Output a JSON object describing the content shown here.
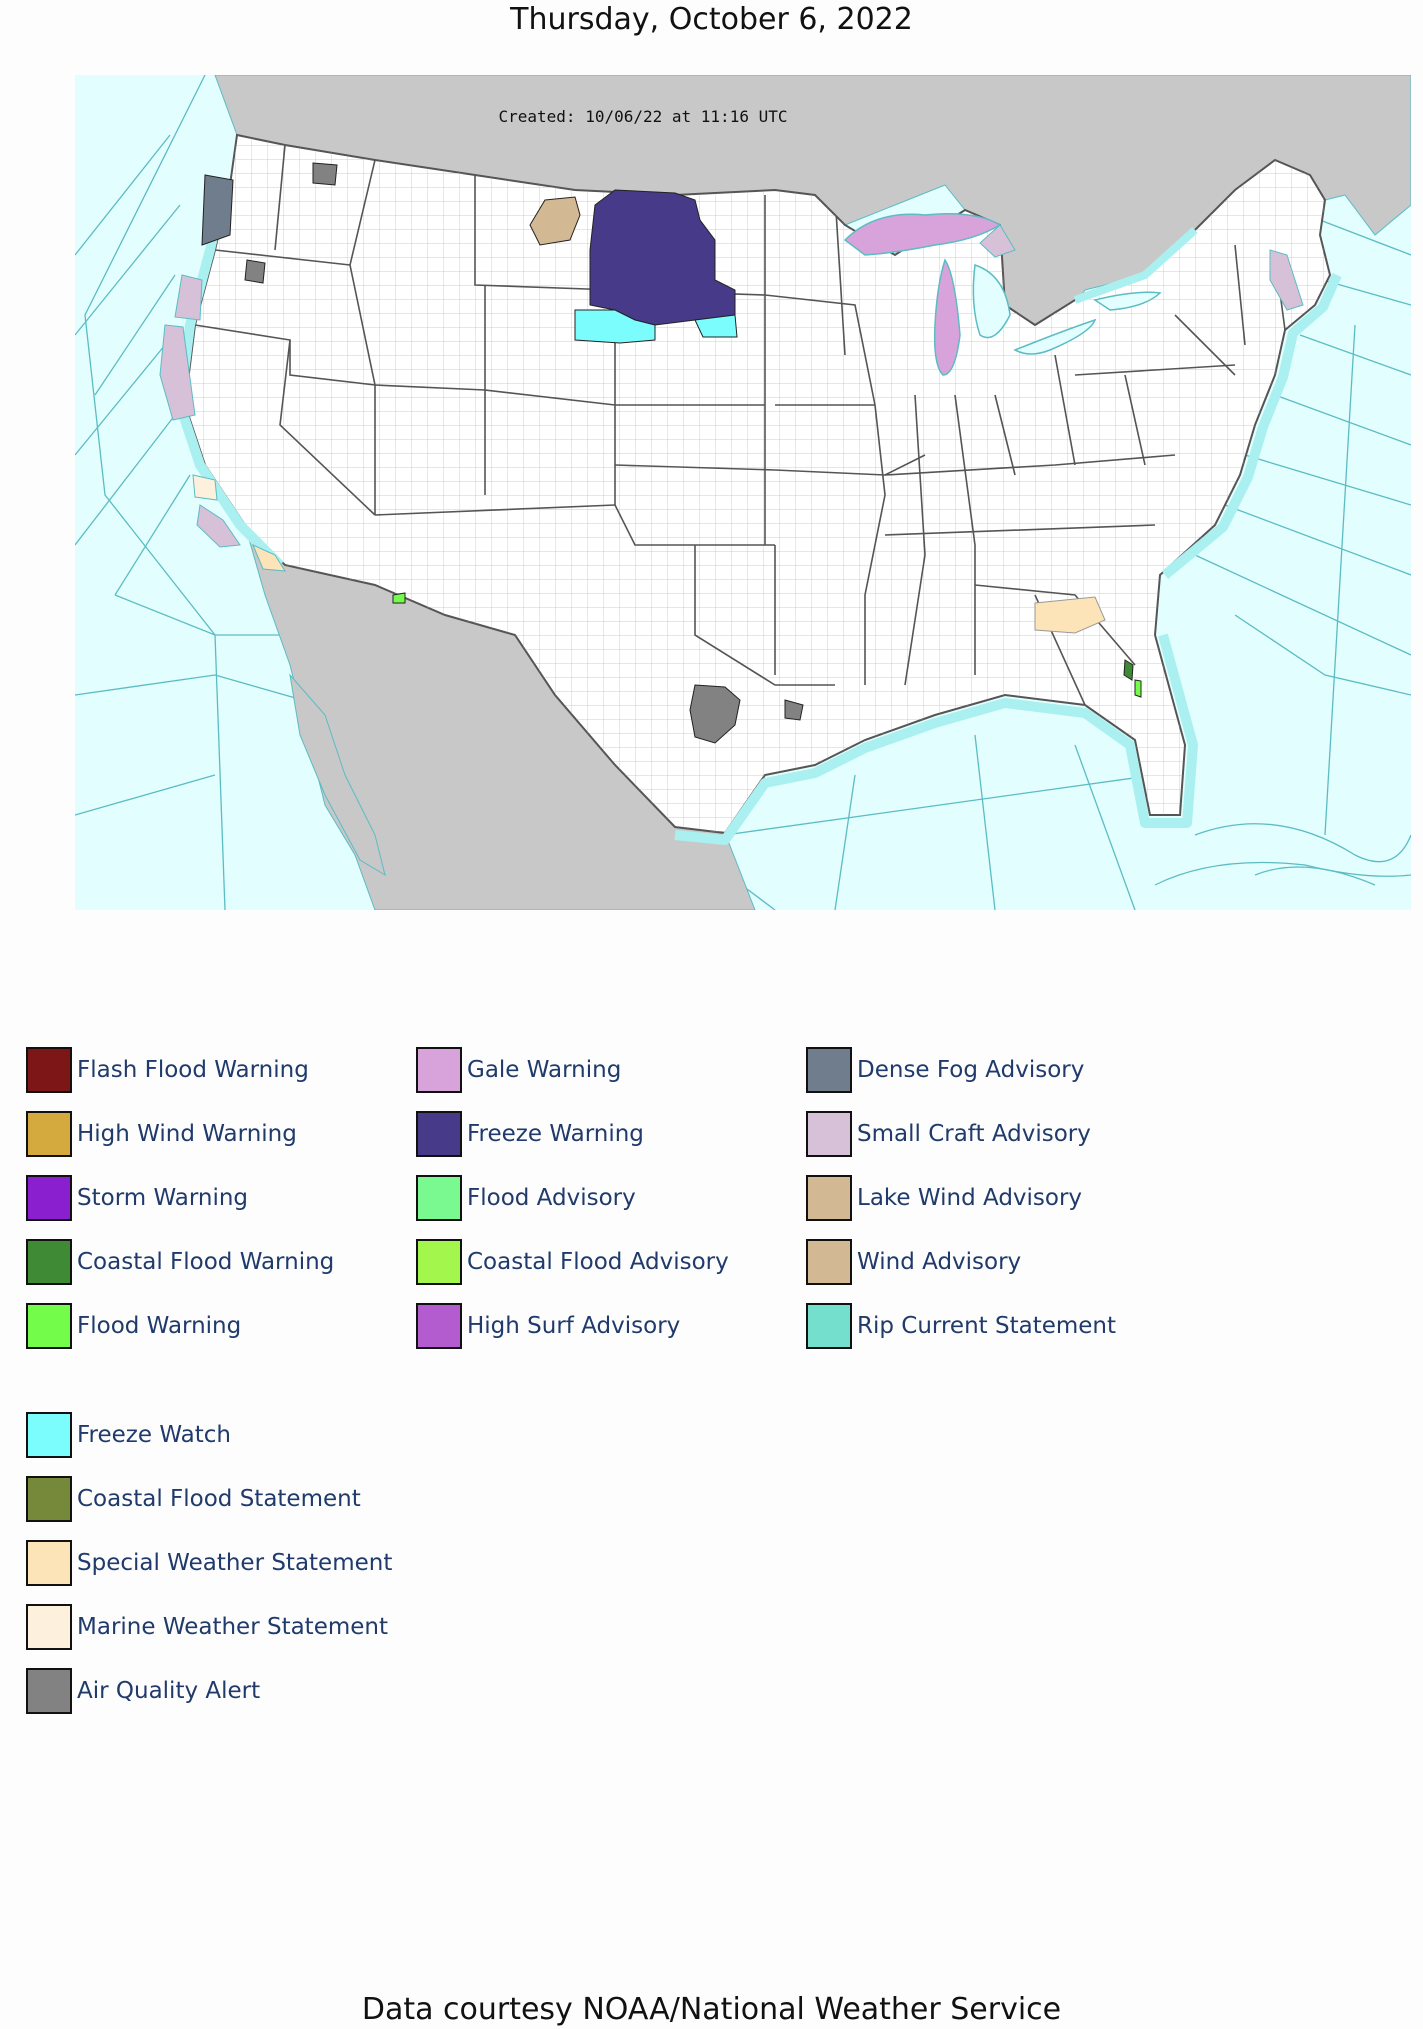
{
  "title": "Thursday, October 6, 2022",
  "map": {
    "created_label": "Created: 10/06/22 at 11:16 UTC",
    "colors": {
      "ocean": "#e2fefe",
      "foreign_land": "#c8c8c8",
      "us_land": "#ffffff",
      "county_line": "#9a9a9a",
      "state_line": "#555555",
      "marine_zone_line": "#5bbcc4",
      "coastal_water": "#aaf0f0"
    }
  },
  "legend": {
    "columns": [
      {
        "items": [
          {
            "label": "Flash Flood Warning",
            "color": "#7d1717"
          },
          {
            "label": "High Wind Warning",
            "color": "#d4a93e"
          },
          {
            "label": "Storm Warning",
            "color": "#8a1fcf"
          },
          {
            "label": "Coastal Flood Warning",
            "color": "#3e8a35"
          },
          {
            "label": "Flood Warning",
            "color": "#74fc4a"
          }
        ]
      },
      {
        "items": [
          {
            "label": "Gale Warning",
            "color": "#d8a3da"
          },
          {
            "label": "Freeze Warning",
            "color": "#473a88"
          },
          {
            "label": "Flood Advisory",
            "color": "#79f98f"
          },
          {
            "label": "Coastal Flood Advisory",
            "color": "#a3f64b"
          },
          {
            "label": "High Surf Advisory",
            "color": "#b25ccf"
          }
        ]
      },
      {
        "items": [
          {
            "label": "Dense Fog Advisory",
            "color": "#6f7d8d"
          },
          {
            "label": "Small Craft Advisory",
            "color": "#d6c1d9"
          },
          {
            "label": "Lake Wind Advisory",
            "color": "#d3b894"
          },
          {
            "label": "Wind Advisory",
            "color": "#d3b894"
          },
          {
            "label": "Rip Current Statement",
            "color": "#75dfce"
          }
        ]
      }
    ],
    "extra_items": [
      {
        "label": "Freeze Watch",
        "color": "#7cfdfd"
      },
      {
        "label": "Coastal Flood Statement",
        "color": "#76883a"
      },
      {
        "label": "Special Weather Statement",
        "color": "#fde4b8"
      },
      {
        "label": "Marine Weather Statement",
        "color": "#fdf0dc"
      },
      {
        "label": "Air Quality Alert",
        "color": "#828282"
      }
    ]
  },
  "footer": {
    "credit": "Data courtesy NOAA/National Weather Service"
  }
}
